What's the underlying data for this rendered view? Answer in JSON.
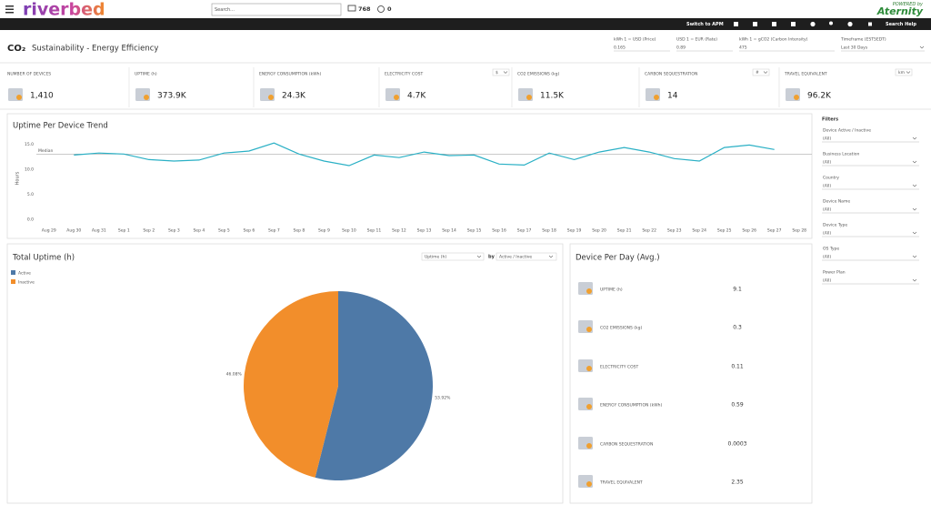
{
  "header": {
    "logo": "riverbed",
    "search_placeholder": "Search...",
    "devices_count": "768",
    "alerts_count": "0",
    "powered_by": "POWERED by",
    "brand": "Aternity"
  },
  "toolbar": {
    "switch": "Switch to APM",
    "help": "Search Help"
  },
  "page": {
    "icon": "CO₂",
    "title": "Sustainability - Energy Efficiency"
  },
  "parameters": [
    {
      "label": "kWh 1 = USD (Price)",
      "value": "0.165"
    },
    {
      "label": "USD 1 = EUR (Rate)",
      "value": "0.89"
    },
    {
      "label": "kWh 1 = gCO2 (Carbon Intensity)",
      "value": "475"
    },
    {
      "label": "Timeframe (EST5EDT)",
      "value": "Last 30 Days"
    }
  ],
  "kpis": [
    {
      "label": "NUMBER OF DEVICES",
      "value": "1,410"
    },
    {
      "label": "UPTIME (h)",
      "value": "373.9K"
    },
    {
      "label": "ENERGY CONSUMPTION (kWh)",
      "value": "24.3K"
    },
    {
      "label": "ELECTRICITY COST",
      "value": "4.7K",
      "unit": "$"
    },
    {
      "label": "CO2 EMISSIONS (kg)",
      "value": "11.5K"
    },
    {
      "label": "CARBON SEQUESTRATION",
      "value": "14",
      "unit": "#"
    },
    {
      "label": "TRAVEL EQUIVALENT",
      "value": "96.2K",
      "unit": "km"
    }
  ],
  "filters": {
    "title": "Filters",
    "items": [
      {
        "label": "Device Active / Inactive",
        "value": "(All)"
      },
      {
        "label": "Business Location",
        "value": "(All)"
      },
      {
        "label": "Country",
        "value": "(All)"
      },
      {
        "label": "Device Name",
        "value": "(All)"
      },
      {
        "label": "Device Type",
        "value": "(All)"
      },
      {
        "label": "OS Type",
        "value": "(All)"
      },
      {
        "label": "Power Plan",
        "value": "(All)"
      }
    ]
  },
  "device_per_day": {
    "title": "Device Per Day (Avg.)",
    "rows": [
      {
        "label": "UPTIME (h)",
        "value": 9.1
      },
      {
        "label": "CO2 EMISSIONS (kg)",
        "value": 0.3
      },
      {
        "label": "ELECTRICITY COST",
        "value": 0.11
      },
      {
        "label": "ENERGY CONSUMPTION (kWh)",
        "value": 0.59
      },
      {
        "label": "CARBON SEQUESTRATION",
        "value": 0.0003
      },
      {
        "label": "TRAVEL EQUIVALENT",
        "value": 2.35
      }
    ]
  },
  "chart_data": [
    {
      "type": "line",
      "title": "Uptime Per Device Trend",
      "y_label": "Hours",
      "color": "#2ab0c5",
      "categories": [
        "Aug 29",
        "Aug 30",
        "Aug 31",
        "Sep 1",
        "Sep 2",
        "Sep 3",
        "Sep 4",
        "Sep 5",
        "Sep 6",
        "Sep 7",
        "Sep 8",
        "Sep 9",
        "Sep 10",
        "Sep 11",
        "Sep 12",
        "Sep 13",
        "Sep 14",
        "Sep 15",
        "Sep 16",
        "Sep 17",
        "Sep 18",
        "Sep 19",
        "Sep 20",
        "Sep 21",
        "Sep 22",
        "Sep 23",
        "Sep 24",
        "Sep 25",
        "Sep 26",
        "Sep 27",
        "Sep 28"
      ],
      "values": [
        null,
        12.8,
        13.2,
        13.0,
        11.9,
        11.6,
        11.8,
        13.2,
        13.6,
        15.2,
        13.0,
        11.6,
        10.7,
        12.8,
        12.3,
        13.4,
        12.7,
        12.8,
        11.0,
        10.8,
        13.2,
        11.9,
        13.4,
        14.3,
        13.4,
        12.1,
        11.6,
        14.3,
        14.8,
        13.9,
        null
      ],
      "median": {
        "label": "Median",
        "value": 13.0
      },
      "ylim": [
        0,
        16.5
      ],
      "yticks": [
        {
          "value": 0,
          "label": "0.0"
        },
        {
          "value": 5,
          "label": "5.0"
        },
        {
          "value": 10,
          "label": "10.0"
        },
        {
          "value": 15,
          "label": "15.0"
        }
      ],
      "grid": false
    },
    {
      "type": "pie",
      "title": "Total Uptime (h)",
      "legend": "top-left",
      "controls": {
        "measure": "Uptime (h)",
        "by": "by",
        "dimension": "Active / Inactive"
      },
      "categories": [
        "Active",
        "Inactive"
      ],
      "colors": [
        "#4e79a7",
        "#f28e2b"
      ],
      "values": [
        53.92,
        46.08
      ],
      "value_labels": [
        "53.92%",
        "46.08%"
      ]
    }
  ]
}
